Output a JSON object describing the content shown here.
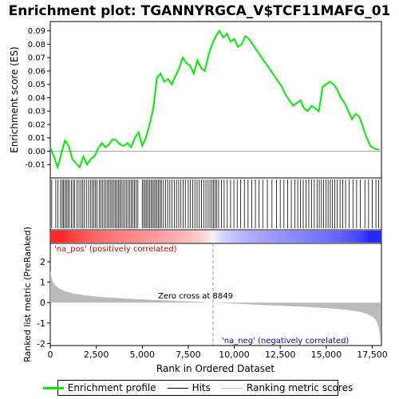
{
  "chart_data": {
    "title": "Enrichment plot: TGANNYRGCA_V$TCF11MAFG_01",
    "panels": [
      {
        "name": "enrichment",
        "type": "line",
        "ylabel": "Enrichment score (ES)",
        "ylim": [
          -0.02,
          0.097
        ],
        "yticks": [
          -0.01,
          0.0,
          0.01,
          0.02,
          0.03,
          0.04,
          0.05,
          0.06,
          0.07,
          0.08,
          0.09
        ],
        "ytick_labels": [
          "-0.01",
          "0.00",
          "0.01",
          "0.02",
          "0.03",
          "0.04",
          "0.05",
          "0.06",
          "0.07",
          "0.08",
          "0.09"
        ],
        "series": [
          {
            "name": "Enrichment profile",
            "color": "#00ee00",
            "x": [
              0,
              200,
              400,
              600,
              800,
              1000,
              1200,
              1400,
              1600,
              1800,
              2000,
              2200,
              2400,
              2600,
              2800,
              3000,
              3200,
              3400,
              3600,
              3800,
              4000,
              4200,
              4400,
              4600,
              4800,
              5000,
              5200,
              5400,
              5600,
              5800,
              6000,
              6200,
              6400,
              6600,
              6800,
              7000,
              7200,
              7400,
              7600,
              7800,
              8000,
              8200,
              8400,
              8600,
              8800,
              9000,
              9200,
              9400,
              9600,
              9800,
              10000,
              10200,
              10400,
              10600,
              10800,
              11000,
              11200,
              11400,
              11600,
              11800,
              12000,
              12200,
              12400,
              12600,
              12800,
              13000,
              13200,
              13400,
              13600,
              13800,
              14000,
              14200,
              14400,
              14600,
              14800,
              15000,
              15200,
              15400,
              15600,
              15800,
              16000,
              16200,
              16400,
              16600,
              16800,
              17000,
              17200,
              17400,
              17600,
              17900
            ],
            "y": [
              0.003,
              -0.004,
              -0.012,
              -0.002,
              0.008,
              0.004,
              -0.006,
              -0.009,
              -0.012,
              -0.004,
              -0.01,
              -0.006,
              -0.004,
              0.002,
              0.006,
              0.003,
              0.005,
              0.009,
              0.008,
              0.005,
              0.004,
              0.006,
              0.003,
              0.01,
              0.014,
              0.004,
              0.01,
              0.02,
              0.032,
              0.055,
              0.058,
              0.052,
              0.054,
              0.05,
              0.056,
              0.062,
              0.07,
              0.066,
              0.064,
              0.058,
              0.068,
              0.062,
              0.06,
              0.072,
              0.08,
              0.086,
              0.09,
              0.085,
              0.088,
              0.082,
              0.084,
              0.078,
              0.08,
              0.086,
              0.084,
              0.08,
              0.076,
              0.072,
              0.068,
              0.064,
              0.06,
              0.056,
              0.052,
              0.048,
              0.042,
              0.038,
              0.034,
              0.036,
              0.038,
              0.032,
              0.03,
              0.034,
              0.032,
              0.03,
              0.048,
              0.05,
              0.052,
              0.05,
              0.046,
              0.04,
              0.036,
              0.03,
              0.024,
              0.028,
              0.026,
              0.018,
              0.01,
              0.004,
              0.002,
              0.001
            ]
          }
        ]
      },
      {
        "name": "hits",
        "type": "rug",
        "series": [
          {
            "name": "Hits",
            "color": "#000000",
            "positions": [
              80,
              300,
              420,
              560,
              650,
              720,
              800,
              880,
              960,
              1040,
              1150,
              1250,
              1330,
              1450,
              1560,
              1660,
              1750,
              1850,
              1960,
              2080,
              2180,
              2270,
              2360,
              2450,
              2540,
              2660,
              2760,
              2850,
              2940,
              3030,
              3120,
              3200,
              3290,
              3370,
              3460,
              3540,
              3620,
              3700,
              3780,
              3860,
              3950,
              4040,
              4130,
              4220,
              4310,
              4400,
              4490,
              4580,
              4670,
              4760,
              5000,
              5080,
              5160,
              5240,
              5320,
              5400,
              5480,
              5560,
              5640,
              5720,
              5800,
              5880,
              5960,
              6040,
              6150,
              6260,
              6380,
              6500,
              6620,
              6740,
              6860,
              6980,
              7100,
              7220,
              7340,
              7500,
              7620,
              7740,
              7860,
              7980,
              8100,
              8220,
              8340,
              8460,
              8580,
              8680,
              8780,
              8870,
              8960,
              9050,
              9150,
              9300,
              9450,
              9620,
              9800,
              9980,
              10160,
              10350,
              10550,
              10750,
              10950,
              11150,
              11350,
              11550,
              11800,
              12050,
              12300,
              12500,
              12700,
              12900,
              13100,
              13300,
              13450,
              13600,
              13750,
              13900,
              14050,
              14200,
              14350,
              14500,
              14620,
              14740,
              14860,
              14980,
              15100,
              15220,
              15340,
              15460,
              15600,
              15750,
              15900,
              16050,
              16250,
              16450,
              16650,
              16850,
              17100,
              17300,
              17500,
              17700,
              17850
            ]
          }
        ]
      },
      {
        "name": "ranked_metric",
        "type": "area",
        "xlabel": "Rank in Ordered Dataset",
        "ylabel": "Ranked list metric (PreRanked)",
        "xlim": [
          0,
          18000
        ],
        "ylim": [
          -2.1,
          2.9
        ],
        "xticks": [
          0,
          2500,
          5000,
          7500,
          10000,
          12500,
          15000,
          17500
        ],
        "xtick_labels": [
          "0",
          "2,500",
          "5,000",
          "7,500",
          "10,000",
          "12,500",
          "15,000",
          "17,500"
        ],
        "yticks": [
          -2,
          -1,
          0,
          1,
          2
        ],
        "ytick_labels": [
          "-2",
          "-1",
          "0",
          "1",
          "2"
        ],
        "series": [
          {
            "name": "Ranking metric scores",
            "color": "#bbbbbb",
            "x": [
              0,
              50,
              150,
              300,
              500,
              800,
              1200,
              1800,
              2500,
              3500,
              4500,
              5500,
              6500,
              7500,
              8300,
              8849,
              9500,
              10500,
              11500,
              12500,
              13500,
              14500,
              15500,
              16200,
              16800,
              17200,
              17500,
              17700,
              17850,
              17950
            ],
            "y": [
              1.6,
              1.25,
              1.0,
              0.82,
              0.68,
              0.56,
              0.46,
              0.37,
              0.3,
              0.23,
              0.18,
              0.14,
              0.1,
              0.06,
              0.025,
              0.0,
              -0.03,
              -0.07,
              -0.11,
              -0.15,
              -0.19,
              -0.24,
              -0.3,
              -0.36,
              -0.45,
              -0.55,
              -0.68,
              -0.85,
              -1.2,
              -1.85
            ]
          }
        ],
        "annotations": [
          "Zero cross at 8849",
          "'na_pos' (positively correlated)",
          "'na_neg' (negatively correlated)"
        ],
        "zero_cross": 8849
      }
    ],
    "legend": {
      "placement": "bottom",
      "entries": [
        "Enrichment profile",
        "Hits",
        "Ranking metric scores"
      ]
    }
  },
  "colors": {
    "profile": "#00ee00",
    "hits": "#000000",
    "metric": "#bbbbbb",
    "pos_label": "#cc0000",
    "neg_label": "#0000cc",
    "heat_pos": "#e02020",
    "heat_neg": "#2020e0"
  }
}
